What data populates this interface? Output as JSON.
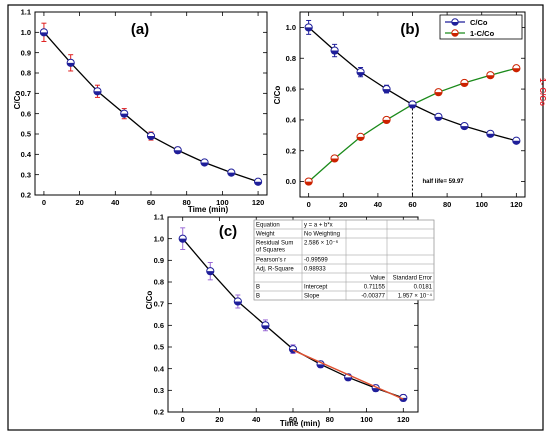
{
  "colors": {
    "series_blue": "#1f1f9a",
    "series_red": "#cc2200",
    "line_black": "#000000",
    "line_green": "#1a8a1a",
    "errbar_red": "#e02020",
    "errbar_purple": "#9b6bd6",
    "fit_red": "#e05030",
    "right_axis_red": "#e8202a"
  },
  "chart_data": [
    {
      "type": "line",
      "panel_label": "(a)",
      "xlabel": "Time (min)",
      "ylabel": "C/Co",
      "xlim": [
        -5,
        125
      ],
      "ylim": [
        0.2,
        1.1
      ],
      "xticks": [
        "0",
        "20",
        "40",
        "60",
        "80",
        "100",
        "120"
      ],
      "yticks": [
        "0.2",
        "0.3",
        "0.4",
        "0.5",
        "0.6",
        "0.7",
        "0.8",
        "0.9",
        "1.0",
        "1.1"
      ],
      "x": [
        0,
        15,
        30,
        45,
        60,
        75,
        90,
        105,
        120
      ],
      "series": [
        {
          "values": [
            1.0,
            0.85,
            0.71,
            0.6,
            0.49,
            0.42,
            0.36,
            0.31,
            0.265
          ],
          "errors": [
            0.045,
            0.04,
            0.03,
            0.025,
            0.02,
            0.015,
            0.01,
            0.01,
            0.01
          ]
        }
      ]
    },
    {
      "type": "line",
      "panel_label": "(b)",
      "xlabel": "",
      "ylabel": "C/Co",
      "ylabel_right": "1- C/Co",
      "xlim": [
        -5,
        125
      ],
      "ylim": [
        -0.1,
        1.1
      ],
      "xticks": [
        "0",
        "20",
        "40",
        "60",
        "80",
        "100",
        "120"
      ],
      "yticks": [
        "0.0",
        "0.2",
        "0.4",
        "0.6",
        "0.8",
        "1.0"
      ],
      "x": [
        0,
        15,
        30,
        45,
        60,
        75,
        90,
        105,
        120
      ],
      "legend": "top-right",
      "series": [
        {
          "name": "C/Co",
          "values": [
            1.0,
            0.85,
            0.71,
            0.6,
            0.5,
            0.42,
            0.36,
            0.31,
            0.265
          ],
          "errors": [
            0.045,
            0.04,
            0.03,
            0.025,
            0.02,
            0.015,
            0.01,
            0.01,
            0.01
          ]
        },
        {
          "name": "1-C/Co",
          "values": [
            0.0,
            0.15,
            0.29,
            0.4,
            0.5,
            0.58,
            0.64,
            0.69,
            0.735
          ]
        }
      ],
      "annotation": {
        "text": "half life= 59.97",
        "x": 59.97,
        "y": 0.5
      }
    },
    {
      "type": "line",
      "panel_label": "(c)",
      "xlabel": "Time (min)",
      "ylabel": "C/Co",
      "xlim": [
        -8,
        128
      ],
      "ylim": [
        0.2,
        1.1
      ],
      "xticks": [
        "0",
        "20",
        "40",
        "60",
        "80",
        "100",
        "120"
      ],
      "yticks": [
        "0.2",
        "0.3",
        "0.4",
        "0.5",
        "0.6",
        "0.7",
        "0.8",
        "0.9",
        "1.0",
        "1.1"
      ],
      "x": [
        0,
        15,
        30,
        45,
        60,
        75,
        90,
        105,
        120
      ],
      "series": [
        {
          "values": [
            1.0,
            0.85,
            0.71,
            0.6,
            0.49,
            0.42,
            0.36,
            0.31,
            0.265
          ],
          "errors": [
            0.05,
            0.04,
            0.03,
            0.025,
            0.02,
            0.015,
            0.015,
            0.015,
            0.015
          ]
        }
      ],
      "fit": {
        "a": 0.71155,
        "b": -0.00377,
        "x_range": [
          60,
          120
        ]
      },
      "fit_table": [
        [
          "Equation",
          "y = a + b*x",
          "",
          ""
        ],
        [
          "Weight",
          "No Weighting",
          "",
          ""
        ],
        [
          "Residual Sum of Squares",
          "2.586 × 10⁻⁶",
          "",
          ""
        ],
        [
          "Pearson's r",
          "-0.99599",
          "",
          ""
        ],
        [
          "Adj. R-Square",
          "0.98933",
          "",
          ""
        ],
        [
          "",
          "",
          "Value",
          "Standard Error"
        ],
        [
          "B",
          "Intercept",
          "0.71155",
          "0.0181"
        ],
        [
          "B",
          "Slope",
          "-0.00377",
          "1.957 × 10⁻⁴"
        ]
      ]
    }
  ]
}
